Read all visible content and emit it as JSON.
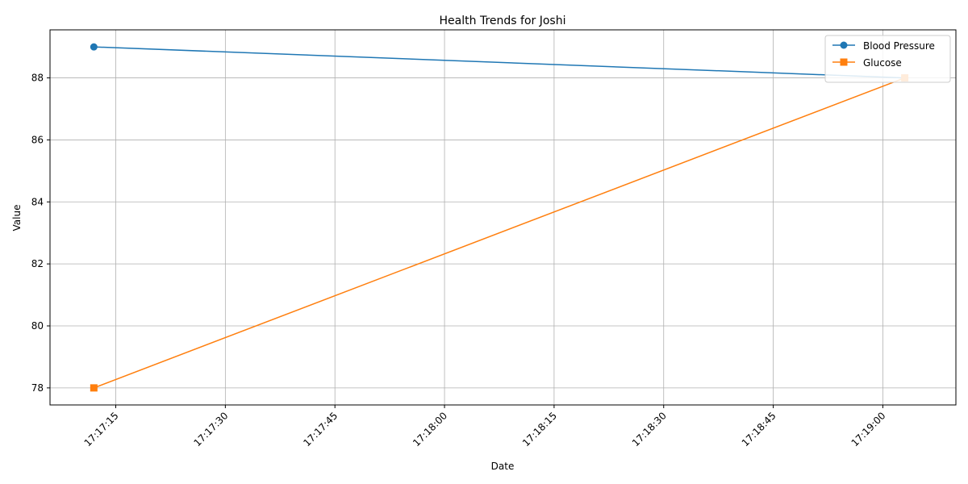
{
  "chart_data": {
    "type": "line",
    "title": "Health Trends for Joshi",
    "xlabel": "Date",
    "ylabel": "Value",
    "x_axis": {
      "kind": "time",
      "ticks": [
        "17:17:15",
        "17:17:30",
        "17:17:45",
        "17:18:00",
        "17:18:15",
        "17:18:30",
        "17:18:45",
        "17:19:00"
      ],
      "xlim": [
        "17:17:06",
        "17:19:10"
      ]
    },
    "y_axis": {
      "ticks": [
        78,
        80,
        82,
        84,
        86,
        88
      ],
      "ylim": [
        77.45,
        89.55
      ]
    },
    "grid": true,
    "legend_position": "top-right",
    "series": [
      {
        "name": "Blood Pressure",
        "color": "#1f77b4",
        "marker": "circle",
        "x": [
          "17:17:12",
          "17:19:03"
        ],
        "y": [
          89,
          88
        ]
      },
      {
        "name": "Glucose",
        "color": "#ff7f0e",
        "marker": "square",
        "x": [
          "17:17:12",
          "17:19:03"
        ],
        "y": [
          78,
          88
        ]
      }
    ]
  }
}
